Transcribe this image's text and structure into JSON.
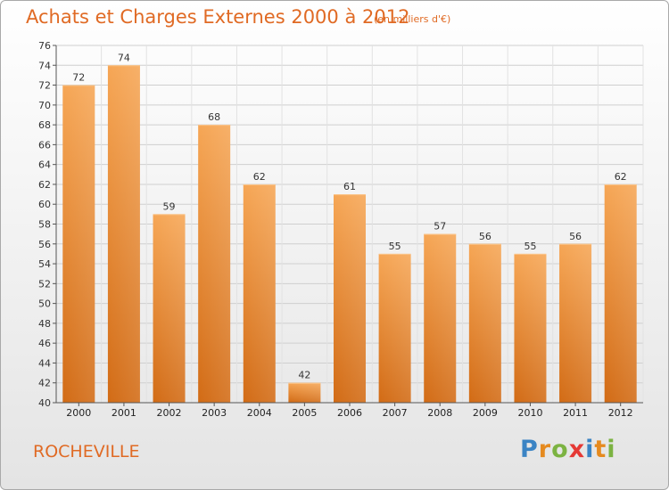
{
  "header": {
    "title": "Achats et Charges Externes 2000 à 2012",
    "subtitle": "(en milliers d'€)"
  },
  "footer": {
    "commune": "ROCHEVILLE",
    "logo_letters": [
      {
        "ch": "P",
        "color": "#3b84c4"
      },
      {
        "ch": "r",
        "color": "#e58a1f"
      },
      {
        "ch": "o",
        "color": "#7cb342"
      },
      {
        "ch": "x",
        "color": "#e53935"
      },
      {
        "ch": "i",
        "color": "#3b84c4"
      },
      {
        "ch": "t",
        "color": "#e58a1f"
      },
      {
        "ch": "i",
        "color": "#7cb342"
      }
    ]
  },
  "chart_data": {
    "type": "bar",
    "title": "Achats et Charges Externes 2000 à 2012",
    "subtitle": "(en milliers d'€)",
    "categories": [
      "2000",
      "2001",
      "2002",
      "2003",
      "2004",
      "2005",
      "2006",
      "2007",
      "2008",
      "2009",
      "2010",
      "2011",
      "2012"
    ],
    "values": [
      72,
      74,
      59,
      68,
      62,
      42,
      61,
      55,
      57,
      56,
      55,
      56,
      62
    ],
    "ylim": [
      40,
      76
    ],
    "yticks": [
      40,
      42,
      44,
      46,
      48,
      50,
      52,
      54,
      56,
      58,
      60,
      62,
      64,
      66,
      68,
      70,
      72,
      74,
      76
    ],
    "grid": true,
    "bar_color": "#f0913a",
    "xlabel": "",
    "ylabel": ""
  }
}
